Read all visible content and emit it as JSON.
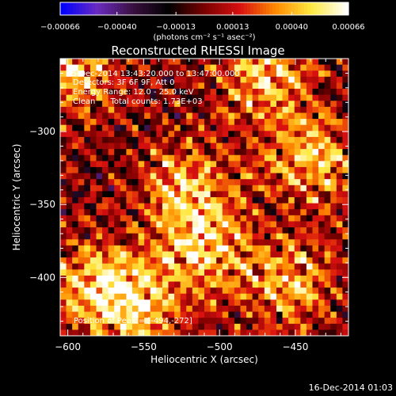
{
  "chart_data": {
    "type": "heatmap",
    "title": "Reconstructed RHESSI Image",
    "xlabel": "Heliocentric X (arcsec)",
    "ylabel": "Heliocentric Y (arcsec)",
    "xlim": [
      -605,
      -415
    ],
    "ylim": [
      -440,
      -250
    ],
    "xticks": [
      -600,
      -550,
      -500,
      -450
    ],
    "xtick_labels": [
      "−600",
      "−550",
      "−500",
      "−450"
    ],
    "yticks": [
      -300,
      -350,
      -400
    ],
    "ytick_labels": [
      "−300",
      "−350",
      "−400"
    ],
    "colorbar": {
      "range": [
        -0.00066,
        0.00066
      ],
      "ticks": [
        -0.00066,
        -0.0004,
        -0.00013,
        0.00013,
        0.0004,
        0.00066
      ],
      "tick_labels": [
        "−0.00066",
        "−0.00040",
        "−0.00013",
        "0.00013",
        "0.00040",
        "0.00066"
      ],
      "unit_label": "(photons cm⁻² s⁻¹ asec⁻²)",
      "colormap": [
        "#0000ff",
        "#6a2bc0",
        "#3a1040",
        "#000000",
        "#7a0000",
        "#d81010",
        "#ff8a00",
        "#ffe840",
        "#ffffff"
      ]
    },
    "annotations": {
      "time_range": "15-Dec-2014 13:43:20.000 to 13:47:00.000",
      "detectors": "Detectors: 3F 6F 9F, Att 0",
      "energy_range": "Energy Range: 12.0 - 25.0 keV",
      "clean_counts": "Clean      Total counts: 1.73E+03",
      "peak_position": "Position of Peak = [-494,-272]"
    },
    "footer_timestamp": "16-Dec-2014 01:03",
    "peak": [
      -494,
      -272
    ]
  }
}
